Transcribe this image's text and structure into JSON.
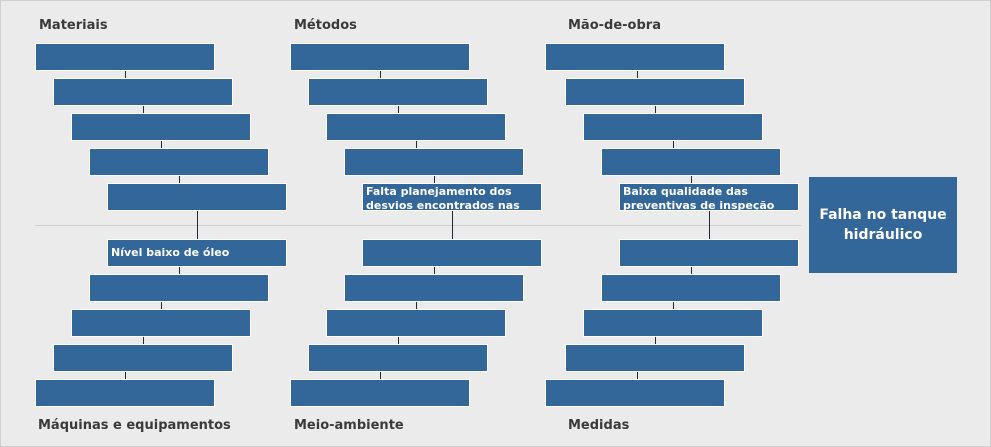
{
  "categories": {
    "materiais": "Materiais",
    "metodos": "Métodos",
    "mao_de_obra": "Mão-de-obra",
    "maquinas": "Máquinas e equipamentos",
    "meio_ambiente": "Meio-ambiente",
    "medidas": "Medidas"
  },
  "causes": {
    "nivel_oleo": "Nível baixo de óleo",
    "falta_planejamento": "Falta planejamento dos desvios encontrados nas preventivas",
    "baixa_qualidade": "Baixa qualidade das preventivas de inspeção"
  },
  "effect": "Falha no tanque hidráulico",
  "colors": {
    "box": "#336699",
    "background": "#ebebeb",
    "connector": "#1f2a36",
    "label": "#3a3a3a"
  }
}
